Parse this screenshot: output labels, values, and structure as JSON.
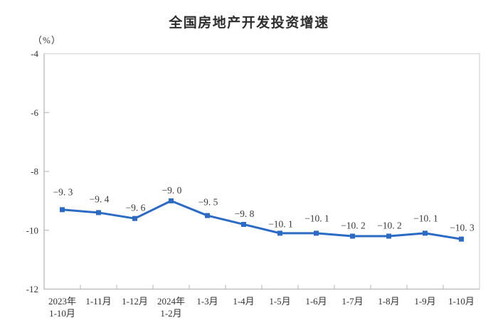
{
  "chart_data": {
    "type": "line",
    "title": "全国房地产开发投资增速",
    "ylabel": "（%）",
    "ylim": [
      -12,
      -4
    ],
    "yticks": [
      -4,
      -6,
      -8,
      -10,
      -12
    ],
    "ytick_labels": [
      "-4",
      "-6",
      "-8",
      "-10",
      "-12"
    ],
    "categories": [
      "2023年\n1-10月",
      "1-11月",
      "1-12月",
      "2024年\n1-2月",
      "1-3月",
      "1-4月",
      "1-5月",
      "1-6月",
      "1-7月",
      "1-8月",
      "1-9月",
      "1-10月"
    ],
    "values": [
      -9.3,
      -9.4,
      -9.6,
      -9.0,
      -9.5,
      -9.8,
      -10.1,
      -10.1,
      -10.2,
      -10.2,
      -10.1,
      -10.3
    ],
    "point_labels": [
      "−9. 3",
      "−9. 4",
      "−9. 6",
      "−9. 0",
      "−9. 5",
      "−9. 8",
      "−10. 1",
      "−10. 1",
      "−10. 2",
      "−10. 2",
      "−10. 1",
      "−10. 3"
    ],
    "line_color": "#2C6BC4",
    "axis_color": "#BDBDBD",
    "border_color": "#D8D8D8",
    "grid": false,
    "legend_position": "none"
  }
}
